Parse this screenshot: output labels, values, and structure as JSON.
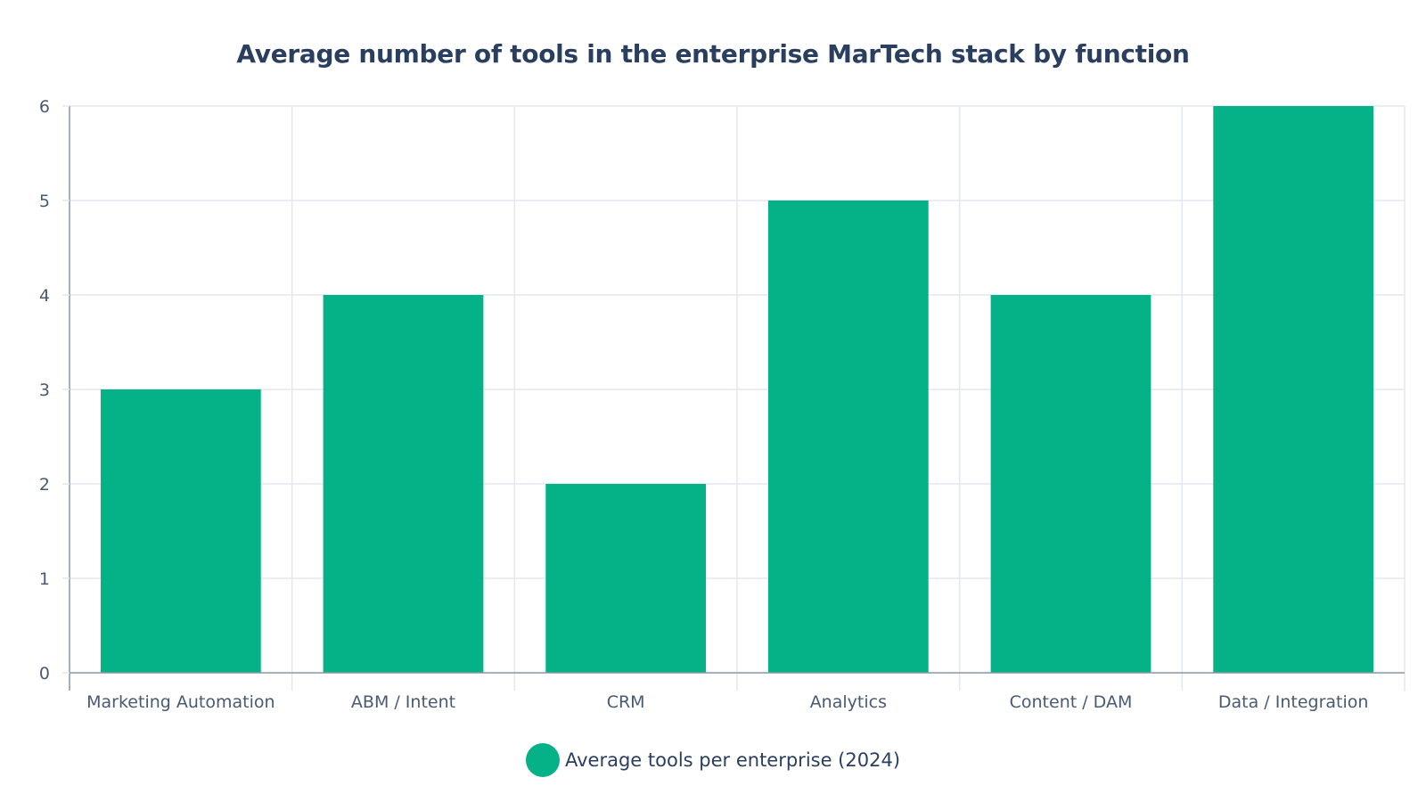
{
  "colors": {
    "bar": "#05b288",
    "grid": "#e3e8ef",
    "axis": "#8c96a5",
    "text": "#2a3f5f"
  },
  "chart_data": {
    "type": "bar",
    "title": "Average number of tools in the enterprise MarTech stack by function",
    "xlabel": "",
    "ylabel": "",
    "categories": [
      "Marketing Automation",
      "ABM / Intent",
      "CRM",
      "Analytics",
      "Content / DAM",
      "Data / Integration"
    ],
    "series": [
      {
        "name": "Average tools per enterprise (2024)",
        "values": [
          3,
          4,
          2,
          5,
          4,
          6
        ]
      }
    ],
    "ylim": [
      0,
      6
    ],
    "yticks": [
      "0",
      "1",
      "2",
      "3",
      "4",
      "5",
      "6"
    ],
    "grid": true,
    "legend_position": "bottom-center"
  }
}
